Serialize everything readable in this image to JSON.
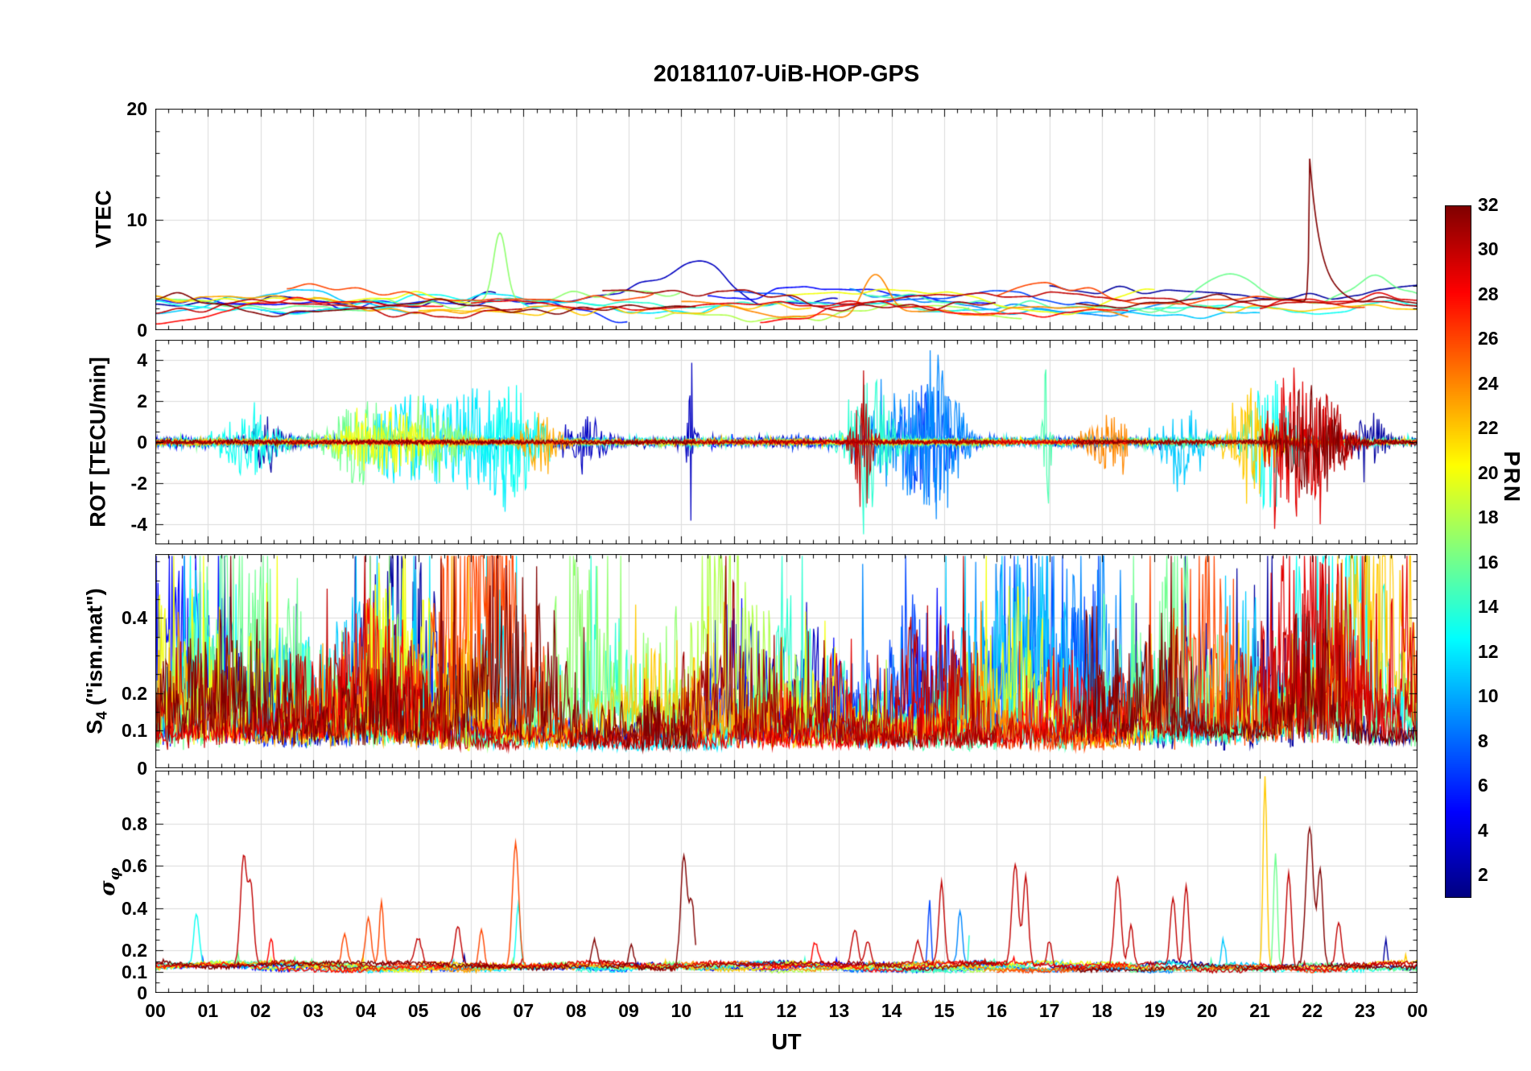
{
  "title": "20181107-UiB-HOP-GPS",
  "xlabel": "UT",
  "x_ticks": [
    "00",
    "01",
    "02",
    "03",
    "04",
    "05",
    "06",
    "07",
    "08",
    "09",
    "10",
    "11",
    "12",
    "13",
    "14",
    "15",
    "16",
    "17",
    "18",
    "19",
    "20",
    "21",
    "22",
    "23",
    "00"
  ],
  "colorbar": {
    "label": "PRN",
    "min": 1,
    "max": 32,
    "ticks": [
      2,
      4,
      6,
      8,
      10,
      12,
      14,
      16,
      18,
      20,
      22,
      24,
      26,
      28,
      30,
      32
    ],
    "colormap": "jet"
  },
  "render": {
    "seed": 20181107
  },
  "passes": [
    {
      "prn": 2,
      "t0": 0,
      "t1": 6.5
    },
    {
      "prn": 2,
      "t0": 17,
      "t1": 24
    },
    {
      "prn": 3,
      "t0": 7,
      "t1": 13
    },
    {
      "prn": 5,
      "t0": 0,
      "t1": 3.5
    },
    {
      "prn": 5,
      "t0": 10.5,
      "t1": 16
    },
    {
      "prn": 6,
      "t0": 2,
      "t1": 9
    },
    {
      "prn": 7,
      "t0": 11,
      "t1": 18
    },
    {
      "prn": 9,
      "t0": 13.2,
      "t1": 20
    },
    {
      "prn": 11,
      "t0": 0,
      "t1": 5
    },
    {
      "prn": 11,
      "t0": 14.5,
      "t1": 21
    },
    {
      "prn": 12,
      "t0": 4,
      "t1": 11
    },
    {
      "prn": 13,
      "t0": 0,
      "t1": 7.5
    },
    {
      "prn": 13,
      "t0": 19,
      "t1": 24
    },
    {
      "prn": 14,
      "t0": 8,
      "t1": 15.5
    },
    {
      "prn": 15,
      "t0": 13.5,
      "t1": 20.5
    },
    {
      "prn": 16,
      "t0": 0,
      "t1": 4.5
    },
    {
      "prn": 16,
      "t0": 18.5,
      "t1": 24
    },
    {
      "prn": 17,
      "t0": 3,
      "t1": 10
    },
    {
      "prn": 18,
      "t0": 9.5,
      "t1": 16.5
    },
    {
      "prn": 20,
      "t0": 0,
      "t1": 6
    },
    {
      "prn": 20,
      "t0": 12,
      "t1": 19
    },
    {
      "prn": 22,
      "t0": 5,
      "t1": 12.5
    },
    {
      "prn": 22,
      "t0": 20,
      "t1": 24
    },
    {
      "prn": 23,
      "t0": 0,
      "t1": 8
    },
    {
      "prn": 24,
      "t0": 10,
      "t1": 18.5
    },
    {
      "prn": 26,
      "t0": 2.5,
      "t1": 9.5
    },
    {
      "prn": 26,
      "t0": 16,
      "t1": 23
    },
    {
      "prn": 28,
      "t0": 0,
      "t1": 5.5
    },
    {
      "prn": 28,
      "t0": 11.5,
      "t1": 18.5
    },
    {
      "prn": 29,
      "t0": 6,
      "t1": 13.5
    },
    {
      "prn": 29,
      "t0": 21,
      "t1": 24
    },
    {
      "prn": 30,
      "t0": 0,
      "t1": 7
    },
    {
      "prn": 30,
      "t0": 13,
      "t1": 24
    },
    {
      "prn": 31,
      "t0": 8.5,
      "t1": 16
    },
    {
      "prn": 32,
      "t0": 0,
      "t1": 10.3
    },
    {
      "prn": 32,
      "t0": 17.5,
      "t1": 24
    }
  ],
  "chart_data": [
    {
      "type": "line",
      "panel": "VTEC",
      "ylabel": "VTEC",
      "ylim": [
        0,
        20
      ],
      "yticks": [
        0,
        10,
        20
      ],
      "yminor": 2,
      "x_range": [
        0,
        24
      ],
      "x_unit": "hours UT",
      "value_band": [
        1,
        6
      ],
      "events": [
        {
          "prn": 32,
          "t": 21.95,
          "type": "decay",
          "amp": 13,
          "tau": 0.22
        },
        {
          "prn": 17,
          "t": 6.55,
          "type": "gauss",
          "amp": 6,
          "w": 0.12
        },
        {
          "prn": 16,
          "t": 20.4,
          "type": "gauss",
          "amp": 2.5,
          "w": 0.5
        },
        {
          "prn": 24,
          "t": 13.7,
          "type": "gauss",
          "amp": 3.5,
          "w": 0.25
        },
        {
          "prn": 3,
          "t": 10.4,
          "type": "gauss",
          "amp": 2.5,
          "w": 0.5
        },
        {
          "prn": 26,
          "t": 16.8,
          "type": "gauss",
          "amp": 2.2,
          "w": 0.8
        },
        {
          "prn": 16,
          "t": 23.2,
          "type": "gauss",
          "amp": 2.0,
          "w": 0.3
        }
      ]
    },
    {
      "type": "line",
      "panel": "ROT",
      "ylabel": "ROT [TECU/min]",
      "ylim": [
        -5,
        5
      ],
      "yticks": [
        -4,
        -2,
        0,
        2,
        4
      ],
      "yminor": 0.5,
      "x_range": [
        0,
        24
      ],
      "baseline_noise": 0.15,
      "events": [
        {
          "prn": 13,
          "t": 1.8,
          "w": 0.35,
          "amp": 1.6
        },
        {
          "prn": 2,
          "t": 2.1,
          "w": 0.25,
          "amp": 1.2
        },
        {
          "prn": 16,
          "t": 3.9,
          "w": 0.4,
          "amp": 2.0
        },
        {
          "prn": 20,
          "t": 4.35,
          "w": 0.5,
          "amp": 1.8
        },
        {
          "prn": 12,
          "t": 4.9,
          "w": 0.7,
          "amp": 2.2
        },
        {
          "prn": 17,
          "t": 5.3,
          "w": 0.4,
          "amp": 1.6
        },
        {
          "prn": 12,
          "t": 6.3,
          "w": 0.4,
          "amp": 2.4
        },
        {
          "prn": 13,
          "t": 6.8,
          "w": 0.35,
          "amp": 2.8
        },
        {
          "prn": 23,
          "t": 7.3,
          "w": 0.25,
          "amp": 1.3
        },
        {
          "prn": 3,
          "t": 8.2,
          "w": 0.25,
          "amp": 1.1
        },
        {
          "prn": 3,
          "t": 10.2,
          "w": 0.06,
          "amp": 4.3
        },
        {
          "prn": 30,
          "t": 13.45,
          "w": 0.12,
          "amp": 3.9
        },
        {
          "prn": 14,
          "t": 13.6,
          "w": 0.3,
          "amp": 3.2
        },
        {
          "prn": 9,
          "t": 14.2,
          "w": 0.5,
          "amp": 2.6
        },
        {
          "prn": 7,
          "t": 14.65,
          "w": 0.35,
          "amp": 3.0
        },
        {
          "prn": 9,
          "t": 15.0,
          "w": 0.25,
          "amp": 3.6
        },
        {
          "prn": 15,
          "t": 16.95,
          "w": 0.05,
          "amp": 4.6
        },
        {
          "prn": 24,
          "t": 18.15,
          "w": 0.3,
          "amp": 1.3
        },
        {
          "prn": 11,
          "t": 19.5,
          "w": 0.3,
          "amp": 1.5
        },
        {
          "prn": 22,
          "t": 20.9,
          "w": 0.3,
          "amp": 2.6
        },
        {
          "prn": 13,
          "t": 21.2,
          "w": 0.3,
          "amp": 3.2
        },
        {
          "prn": 29,
          "t": 21.7,
          "w": 0.45,
          "amp": 3.6
        },
        {
          "prn": 32,
          "t": 22.0,
          "w": 0.35,
          "amp": 3.2
        },
        {
          "prn": 30,
          "t": 22.3,
          "w": 0.3,
          "amp": 2.4
        },
        {
          "prn": 2,
          "t": 23.1,
          "w": 0.2,
          "amp": 1.3
        }
      ]
    },
    {
      "type": "line",
      "panel": "S4",
      "ylabel": "S4 (\"ism.mat\")",
      "ylabel_main": "S",
      "ylabel_sub": "4",
      "ylabel_rest": " (\"ism.mat\")",
      "ylim": [
        0,
        0.57
      ],
      "yticks": [
        0,
        0.1,
        0.2,
        0.4
      ],
      "yminor": 0.05,
      "x_range": [
        0,
        24
      ],
      "baseline_band": [
        0.05,
        0.2
      ],
      "spike_ceiling": 0.57
    },
    {
      "type": "line",
      "panel": "sigma_phi",
      "ylabel": "σφ",
      "ylabel_main": "σ",
      "ylabel_sub": "φ",
      "ylim": [
        0,
        1.05
      ],
      "yticks": [
        0,
        0.1,
        0.2,
        0.4,
        0.6,
        0.8
      ],
      "yminor": 0.05,
      "x_range": [
        0,
        24
      ],
      "baseline": 0.12,
      "events": [
        {
          "prn": 13,
          "t": 0.78,
          "w": 0.05,
          "amp": 0.24
        },
        {
          "prn": 30,
          "t": 1.68,
          "w": 0.06,
          "amp": 0.52
        },
        {
          "prn": 30,
          "t": 1.82,
          "w": 0.05,
          "amp": 0.35
        },
        {
          "prn": 28,
          "t": 2.2,
          "w": 0.04,
          "amp": 0.15
        },
        {
          "prn": 26,
          "t": 3.6,
          "w": 0.05,
          "amp": 0.14
        },
        {
          "prn": 26,
          "t": 4.05,
          "w": 0.05,
          "amp": 0.22
        },
        {
          "prn": 26,
          "t": 4.3,
          "w": 0.04,
          "amp": 0.3
        },
        {
          "prn": 30,
          "t": 5.0,
          "w": 0.06,
          "amp": 0.12
        },
        {
          "prn": 30,
          "t": 5.75,
          "w": 0.06,
          "amp": 0.17
        },
        {
          "prn": 26,
          "t": 6.2,
          "w": 0.05,
          "amp": 0.18
        },
        {
          "prn": 26,
          "t": 6.85,
          "w": 0.06,
          "amp": 0.58
        },
        {
          "prn": 13,
          "t": 6.9,
          "w": 0.04,
          "amp": 0.3
        },
        {
          "prn": 30,
          "t": 7.1,
          "w": 0.06,
          "amp": 0.3
        },
        {
          "prn": 32,
          "t": 8.35,
          "w": 0.05,
          "amp": 0.12
        },
        {
          "prn": 32,
          "t": 9.05,
          "w": 0.05,
          "amp": 0.1
        },
        {
          "prn": 32,
          "t": 10.05,
          "w": 0.06,
          "amp": 0.53
        },
        {
          "prn": 32,
          "t": 10.2,
          "w": 0.05,
          "amp": 0.3
        },
        {
          "prn": 28,
          "t": 12.55,
          "w": 0.05,
          "amp": 0.1
        },
        {
          "prn": 30,
          "t": 13.3,
          "w": 0.06,
          "amp": 0.17
        },
        {
          "prn": 30,
          "t": 13.55,
          "w": 0.05,
          "amp": 0.12
        },
        {
          "prn": 30,
          "t": 14.5,
          "w": 0.05,
          "amp": 0.1
        },
        {
          "prn": 7,
          "t": 14.72,
          "w": 0.03,
          "amp": 0.33
        },
        {
          "prn": 30,
          "t": 14.95,
          "w": 0.05,
          "amp": 0.38
        },
        {
          "prn": 9,
          "t": 15.3,
          "w": 0.04,
          "amp": 0.25
        },
        {
          "prn": 14,
          "t": 15.5,
          "w": 0.03,
          "amp": 0.25
        },
        {
          "prn": 30,
          "t": 16.35,
          "w": 0.06,
          "amp": 0.48
        },
        {
          "prn": 30,
          "t": 16.55,
          "w": 0.05,
          "amp": 0.42
        },
        {
          "prn": 30,
          "t": 17.0,
          "w": 0.04,
          "amp": 0.12
        },
        {
          "prn": 30,
          "t": 18.3,
          "w": 0.06,
          "amp": 0.43
        },
        {
          "prn": 30,
          "t": 18.55,
          "w": 0.04,
          "amp": 0.2
        },
        {
          "prn": 30,
          "t": 19.35,
          "w": 0.05,
          "amp": 0.32
        },
        {
          "prn": 30,
          "t": 19.6,
          "w": 0.05,
          "amp": 0.38
        },
        {
          "prn": 11,
          "t": 20.3,
          "w": 0.03,
          "amp": 0.12
        },
        {
          "prn": 22,
          "t": 21.1,
          "w": 0.035,
          "amp": 0.9
        },
        {
          "prn": 16,
          "t": 21.3,
          "w": 0.035,
          "amp": 0.55
        },
        {
          "prn": 30,
          "t": 21.55,
          "w": 0.05,
          "amp": 0.45
        },
        {
          "prn": 32,
          "t": 21.95,
          "w": 0.07,
          "amp": 0.66
        },
        {
          "prn": 32,
          "t": 22.15,
          "w": 0.05,
          "amp": 0.45
        },
        {
          "prn": 30,
          "t": 22.5,
          "w": 0.05,
          "amp": 0.2
        },
        {
          "prn": 2,
          "t": 23.4,
          "w": 0.03,
          "amp": 0.12
        }
      ]
    }
  ]
}
